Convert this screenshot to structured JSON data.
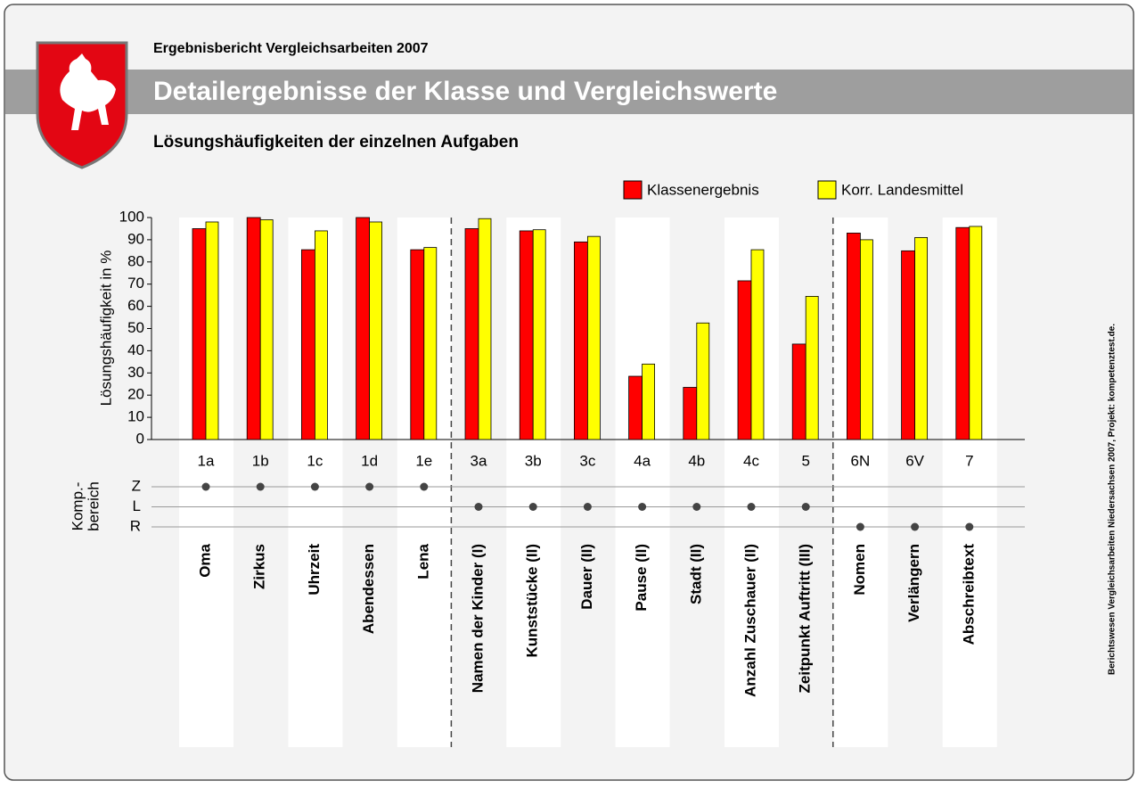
{
  "header": "Ergebnisbericht Vergleichsarbeiten 2007",
  "sidebar": "Berichtswesen Vergleichsarbeiten Niedersachsen 2007, Projekt: kompetenztest.de.",
  "chart_data": {
    "type": "bar",
    "title": "Detailergebnisse der Klasse und Vergleichswerte",
    "subtitle": "Lösungshäufigkeiten der einzelnen Aufgaben",
    "y_label": "Lösungshäufigkeit in %",
    "categories": [
      "1a",
      "1b",
      "1c",
      "1d",
      "1e",
      "3a",
      "3b",
      "3c",
      "4a",
      "4b",
      "4c",
      "5",
      "6N",
      "6V",
      "7"
    ],
    "task_names": [
      "Oma",
      "Zirkus",
      "Uhrzeit",
      "Abendessen",
      "Lena",
      "Namen der Kinder (I)",
      "Kunststücke (II)",
      "Dauer (II)",
      "Pause (II)",
      "Stadt (II)",
      "Anzahl Zuschauer (II)",
      "Zeitpunkt Auftritt (III)",
      "Nomen",
      "Verlängern",
      "Abschreibtext"
    ],
    "series": [
      {
        "name": "Klassenergebnis",
        "color": "#ff0000",
        "values": [
          95,
          100,
          85.5,
          100,
          85.5,
          95,
          94,
          89,
          28.5,
          23.5,
          71.5,
          43,
          93,
          85,
          95.5
        ]
      },
      {
        "name": "Korr. Landesmittel",
        "color": "#ffff00",
        "values": [
          98,
          99,
          94,
          98,
          86.5,
          99.5,
          94.5,
          91.5,
          34,
          52.5,
          85.5,
          64.5,
          90,
          91,
          96
        ]
      }
    ],
    "ylim": [
      0,
      100
    ],
    "yticks": [
      0,
      10,
      20,
      30,
      40,
      50,
      60,
      70,
      80,
      90,
      100
    ],
    "competence_label": [
      "Komp.-",
      "bereich"
    ],
    "competence_levels": [
      "Z",
      "L",
      "R"
    ],
    "category_level": [
      "Z",
      "Z",
      "Z",
      "Z",
      "Z",
      "L",
      "L",
      "L",
      "L",
      "L",
      "L",
      "L",
      "R",
      "R",
      "R"
    ]
  }
}
